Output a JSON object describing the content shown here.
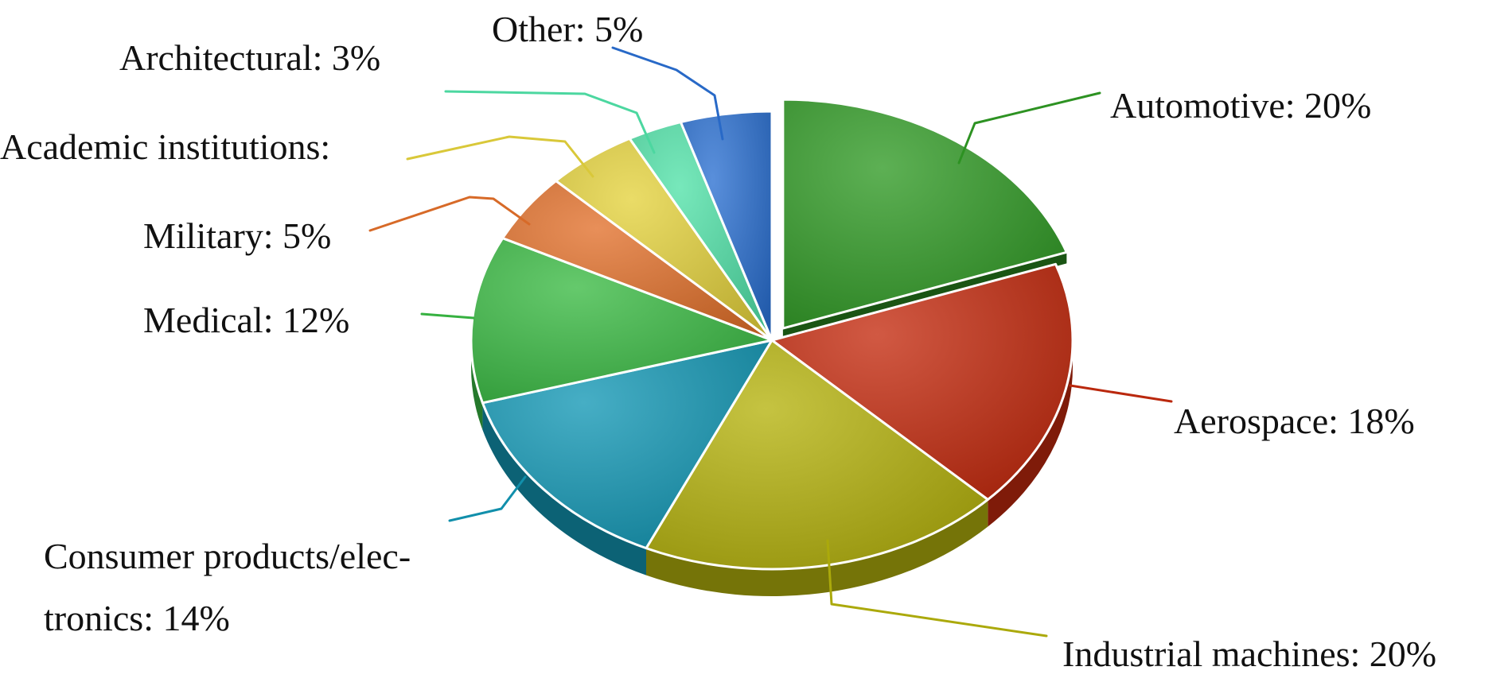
{
  "chart_data": {
    "type": "pie",
    "style": "3d-exploded",
    "slices": [
      {
        "label_lines": [
          "Automotive: 20%"
        ],
        "name": "Automotive",
        "value": 20,
        "color": "#2f9a24",
        "exploded": true
      },
      {
        "label_lines": [
          "Aerospace: 18%"
        ],
        "name": "Aerospace",
        "value": 18,
        "color": "#c42a0e"
      },
      {
        "label_lines": [
          "Industrial machines: 20%"
        ],
        "name": "Industrial machines",
        "value": 20,
        "color": "#b4b20c"
      },
      {
        "label_lines": [
          "Consumer products/elec-",
          "tronics: 14%"
        ],
        "name": "Consumer products/electronics",
        "value": 14,
        "color": "#1297b4"
      },
      {
        "label_lines": [
          "Medical: 12%"
        ],
        "name": "Medical",
        "value": 12,
        "color": "#39ba43"
      },
      {
        "label_lines": [
          "Military: 5%"
        ],
        "name": "Military",
        "value": 5,
        "color": "#e2702a"
      },
      {
        "label_lines": [
          "Academic institutions:"
        ],
        "name": "Academic institutions",
        "value": 5,
        "color": "#e4d23c"
      },
      {
        "label_lines": [
          "Architectural: 3%"
        ],
        "name": "Architectural",
        "value": 3,
        "color": "#50e2a8"
      },
      {
        "label_lines": [
          "Other: 5%"
        ],
        "name": "Other",
        "value": 5,
        "color": "#2a6fd1"
      }
    ],
    "legend": "none"
  }
}
